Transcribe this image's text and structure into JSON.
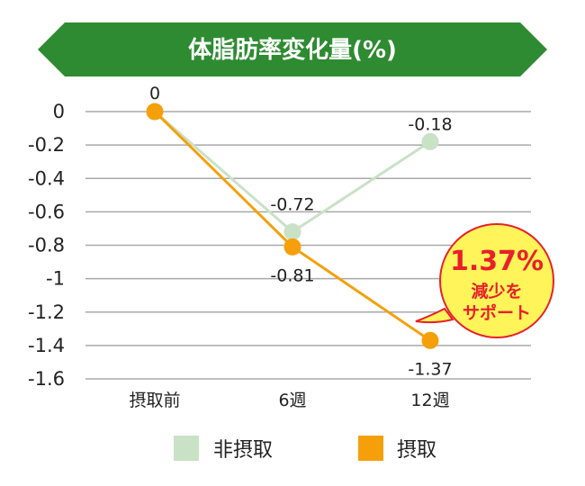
{
  "chart_data": {
    "type": "line",
    "title": "体脂肪率変化量(%)",
    "categories": [
      "摂取前",
      "6週",
      "12週"
    ],
    "series": [
      {
        "name": "非摂取",
        "values": [
          0,
          -0.72,
          -0.18
        ],
        "labels": [
          "0",
          "-0.72",
          "-0.18"
        ],
        "color": "#c9e2c6"
      },
      {
        "name": "摂取",
        "values": [
          0,
          -0.81,
          -1.37
        ],
        "labels": [
          "0",
          "-0.81",
          "-1.37"
        ],
        "color": "#f5a00b"
      }
    ],
    "ylim": [
      -1.6,
      0
    ],
    "yticks": [
      0,
      -0.2,
      -0.4,
      -0.6,
      -0.8,
      -1,
      -1.2,
      -1.4,
      -1.6
    ],
    "ytick_labels": [
      "0",
      "-0.2",
      "-0.4",
      "-0.6",
      "-0.8",
      "-1",
      "-1.2",
      "-1.4",
      "-1.6"
    ],
    "grid": true,
    "legend": "bottom",
    "callout": {
      "big": "1.37%",
      "line1": "減少を",
      "line2": "サポート"
    }
  },
  "colors": {
    "title_bg": "#2e8b31",
    "callout_fill": "#fff45a",
    "callout_stroke": "#e8202a",
    "grid": "#a9a9a9"
  }
}
